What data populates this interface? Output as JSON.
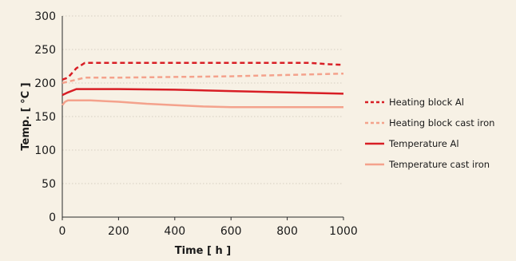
{
  "chart_data": {
    "type": "line",
    "xlabel": "Time [ h ]",
    "ylabel": "Temp. [ °C ]",
    "xlim": [
      0,
      1000
    ],
    "ylim": [
      0,
      300
    ],
    "xticks": [
      0,
      200,
      400,
      600,
      800,
      1000
    ],
    "yticks": [
      0,
      50,
      100,
      150,
      200,
      250,
      300
    ],
    "grid": "horizontal dotted",
    "legend_position": "right",
    "series": [
      {
        "name": "Heating block Al",
        "color": "#d81e25",
        "style": "dashed",
        "x": [
          0,
          20,
          50,
          80,
          200,
          400,
          600,
          800,
          880,
          950,
          1000
        ],
        "y": [
          205,
          208,
          222,
          230,
          230,
          230,
          230,
          230,
          230,
          228,
          227
        ]
      },
      {
        "name": "Heating block cast iron",
        "color": "#f4a28c",
        "style": "dashed",
        "x": [
          0,
          20,
          50,
          80,
          200,
          400,
          600,
          800,
          1000
        ],
        "y": [
          200,
          202,
          205,
          208,
          208,
          209,
          210,
          212,
          214
        ]
      },
      {
        "name": "Temperature Al",
        "color": "#d81e25",
        "style": "solid",
        "x": [
          0,
          20,
          50,
          100,
          200,
          400,
          600,
          800,
          1000
        ],
        "y": [
          182,
          186,
          191,
          191,
          191,
          190,
          188,
          186,
          184
        ]
      },
      {
        "name": "Temperature cast iron",
        "color": "#f4a28c",
        "style": "solid",
        "x": [
          0,
          10,
          20,
          50,
          100,
          200,
          300,
          400,
          500,
          600,
          700,
          800,
          1000
        ],
        "y": [
          167,
          172,
          174,
          174,
          174,
          172,
          169,
          167,
          165,
          164,
          164,
          164,
          164
        ]
      }
    ]
  }
}
